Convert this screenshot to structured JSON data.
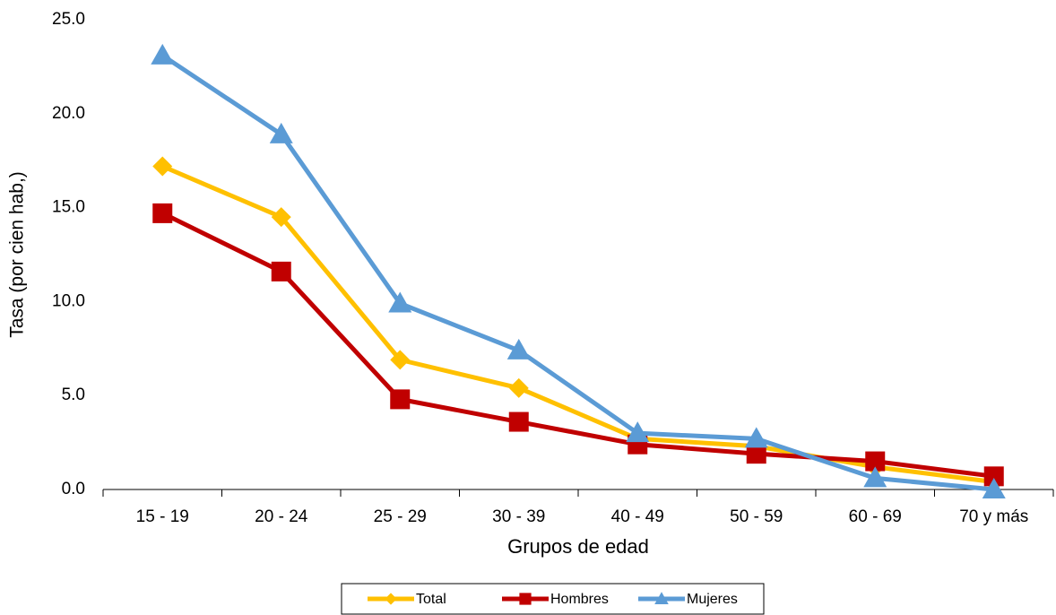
{
  "chart_data": {
    "type": "line",
    "x_label": "Grupos de edad",
    "y_label": "Tasa (por cien hab,)",
    "categories": [
      "15 - 19",
      "20 - 24",
      "25 - 29",
      "30 - 39",
      "40 - 49",
      "50 - 59",
      "60 - 69",
      "70 y más"
    ],
    "series": [
      {
        "name": "Total",
        "color": "#FFC000",
        "marker": "diamond",
        "values": [
          17.2,
          14.5,
          6.9,
          5.4,
          2.7,
          2.3,
          1.2,
          0.4
        ]
      },
      {
        "name": "Hombres",
        "color": "#C00000",
        "marker": "square",
        "values": [
          14.7,
          11.6,
          4.8,
          3.6,
          2.4,
          1.9,
          1.5,
          0.7
        ]
      },
      {
        "name": "Mujeres",
        "color": "#5B9BD5",
        "marker": "triangle",
        "values": [
          23.1,
          18.9,
          9.9,
          7.4,
          3.0,
          2.7,
          0.6,
          0.0
        ]
      }
    ],
    "ylim": [
      0,
      25
    ],
    "yticks": [
      {
        "value": 0,
        "label": "0.0"
      },
      {
        "value": 5,
        "label": "5.0"
      },
      {
        "value": 10,
        "label": "10.0"
      },
      {
        "value": 15,
        "label": "15.0"
      },
      {
        "value": 20,
        "label": "20.0"
      },
      {
        "value": 25,
        "label": "25.0"
      }
    ],
    "grid": false,
    "legend": "bottom"
  }
}
